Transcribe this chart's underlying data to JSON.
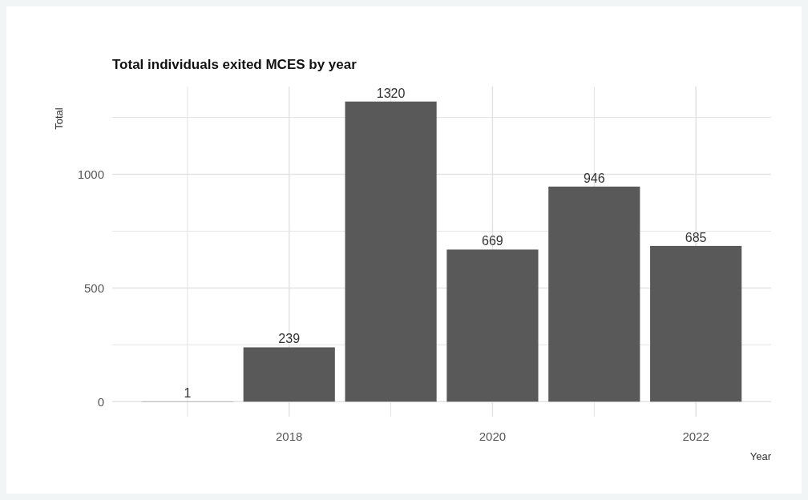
{
  "chart_data": {
    "type": "bar",
    "title": "Total individuals exited MCES by year",
    "xlabel": "Year",
    "ylabel": "Total",
    "x": [
      2017,
      2018,
      2019,
      2020,
      2021,
      2022
    ],
    "values": [
      1,
      239,
      1320,
      669,
      946,
      685
    ],
    "color": "#595959",
    "xlim": [
      2016.26,
      2022.74
    ],
    "xticks": [
      {
        "value": 2017,
        "label": null
      },
      2018,
      {
        "value": 2019,
        "label": null
      },
      2020,
      {
        "value": 2021,
        "label": null
      },
      2022
    ],
    "ylim": [
      -66,
      1386
    ],
    "yticks": [
      0,
      {
        "value": 250,
        "label": null
      },
      500,
      {
        "value": 750,
        "label": null
      },
      1000,
      {
        "value": 1250,
        "label": null
      }
    ],
    "grid": true,
    "data_labels": true
  }
}
